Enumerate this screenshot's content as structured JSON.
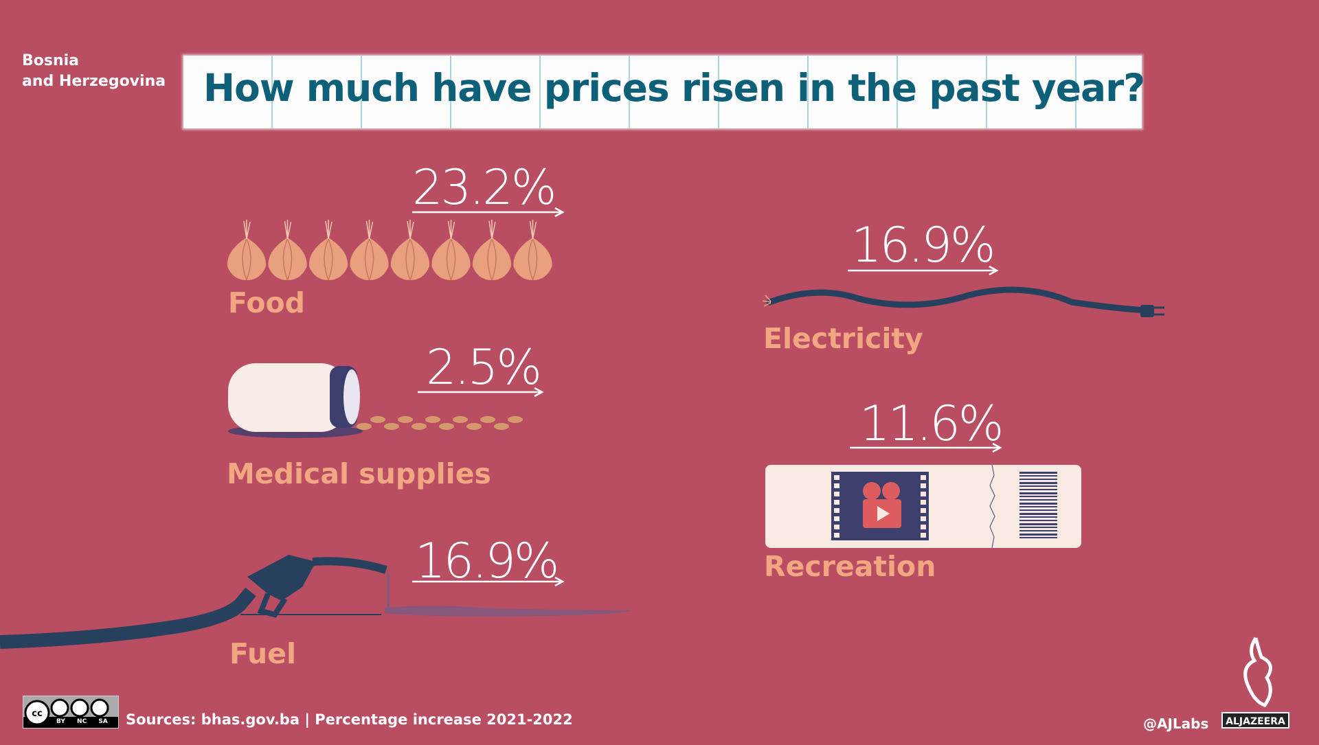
{
  "header": {
    "country_line1": "Bosnia",
    "country_line2": "and Herzegovina",
    "title": "How much have prices risen in the past year?"
  },
  "categories": [
    {
      "name": "Food",
      "value": "23.2%",
      "icon": "onion-icon"
    },
    {
      "name": "Medical supplies",
      "value": "2.5%",
      "icon": "pill-bottle-icon"
    },
    {
      "name": "Fuel",
      "value": "16.9%",
      "icon": "fuel-nozzle-icon"
    },
    {
      "name": "Electricity",
      "value": "16.9%",
      "icon": "power-cable-icon"
    },
    {
      "name": "Recreation",
      "value": "11.6%",
      "icon": "cinema-ticket-icon"
    }
  ],
  "footer": {
    "sources": "Sources: bhas.gov.ba | Percentage increase 2021-2022",
    "handle": "@AJLabs",
    "logo_text": "ALJAZEERA",
    "license": [
      "BY",
      "NC",
      "SA"
    ]
  },
  "colors": {
    "background": "#b94e62",
    "title": "#0e5f78",
    "label": "#f2a783"
  }
}
